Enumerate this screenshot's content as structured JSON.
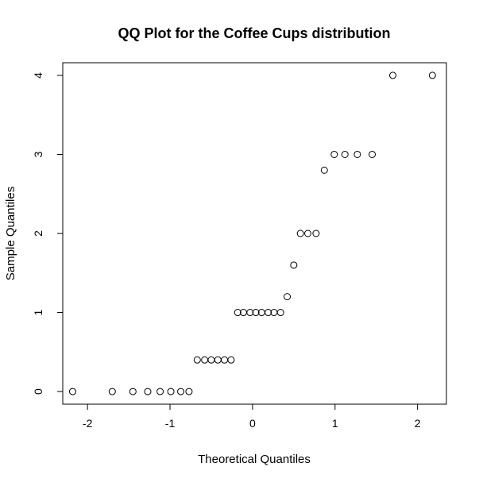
{
  "chart_data": {
    "type": "scatter",
    "title": "QQ Plot for the Coffee Cups distribution",
    "xlabel": "Theoretical Quantiles",
    "ylabel": "Sample Quantiles",
    "xlim": [
      -2.3,
      2.35
    ],
    "ylim": [
      -0.16,
      4.16
    ],
    "x_ticks": [
      -2,
      -1,
      0,
      1,
      2
    ],
    "x_tick_labels": [
      "-2",
      "-1",
      "0",
      "1",
      "2"
    ],
    "y_ticks": [
      0,
      1,
      2,
      3,
      4
    ],
    "y_tick_labels": [
      "0",
      "1",
      "2",
      "3",
      "4"
    ],
    "grid": false,
    "legend": "none",
    "points": [
      {
        "x": -2.18,
        "y": 0
      },
      {
        "x": -1.7,
        "y": 0
      },
      {
        "x": -1.45,
        "y": 0
      },
      {
        "x": -1.27,
        "y": 0
      },
      {
        "x": -1.12,
        "y": 0
      },
      {
        "x": -0.99,
        "y": 0
      },
      {
        "x": -0.87,
        "y": 0
      },
      {
        "x": -0.77,
        "y": 0
      },
      {
        "x": -0.67,
        "y": 0.4
      },
      {
        "x": -0.58,
        "y": 0.4
      },
      {
        "x": -0.5,
        "y": 0.4
      },
      {
        "x": -0.42,
        "y": 0.4
      },
      {
        "x": -0.34,
        "y": 0.4
      },
      {
        "x": -0.26,
        "y": 0.4
      },
      {
        "x": -0.18,
        "y": 1
      },
      {
        "x": -0.11,
        "y": 1
      },
      {
        "x": -0.03,
        "y": 1
      },
      {
        "x": 0.04,
        "y": 1
      },
      {
        "x": 0.11,
        "y": 1
      },
      {
        "x": 0.19,
        "y": 1
      },
      {
        "x": 0.26,
        "y": 1
      },
      {
        "x": 0.34,
        "y": 1
      },
      {
        "x": 0.42,
        "y": 1.2
      },
      {
        "x": 0.5,
        "y": 1.6
      },
      {
        "x": 0.58,
        "y": 2
      },
      {
        "x": 0.67,
        "y": 2
      },
      {
        "x": 0.77,
        "y": 2
      },
      {
        "x": 0.87,
        "y": 2.8
      },
      {
        "x": 0.99,
        "y": 3
      },
      {
        "x": 1.12,
        "y": 3
      },
      {
        "x": 1.27,
        "y": 3
      },
      {
        "x": 1.45,
        "y": 3
      },
      {
        "x": 1.7,
        "y": 4
      },
      {
        "x": 2.18,
        "y": 4
      }
    ]
  }
}
